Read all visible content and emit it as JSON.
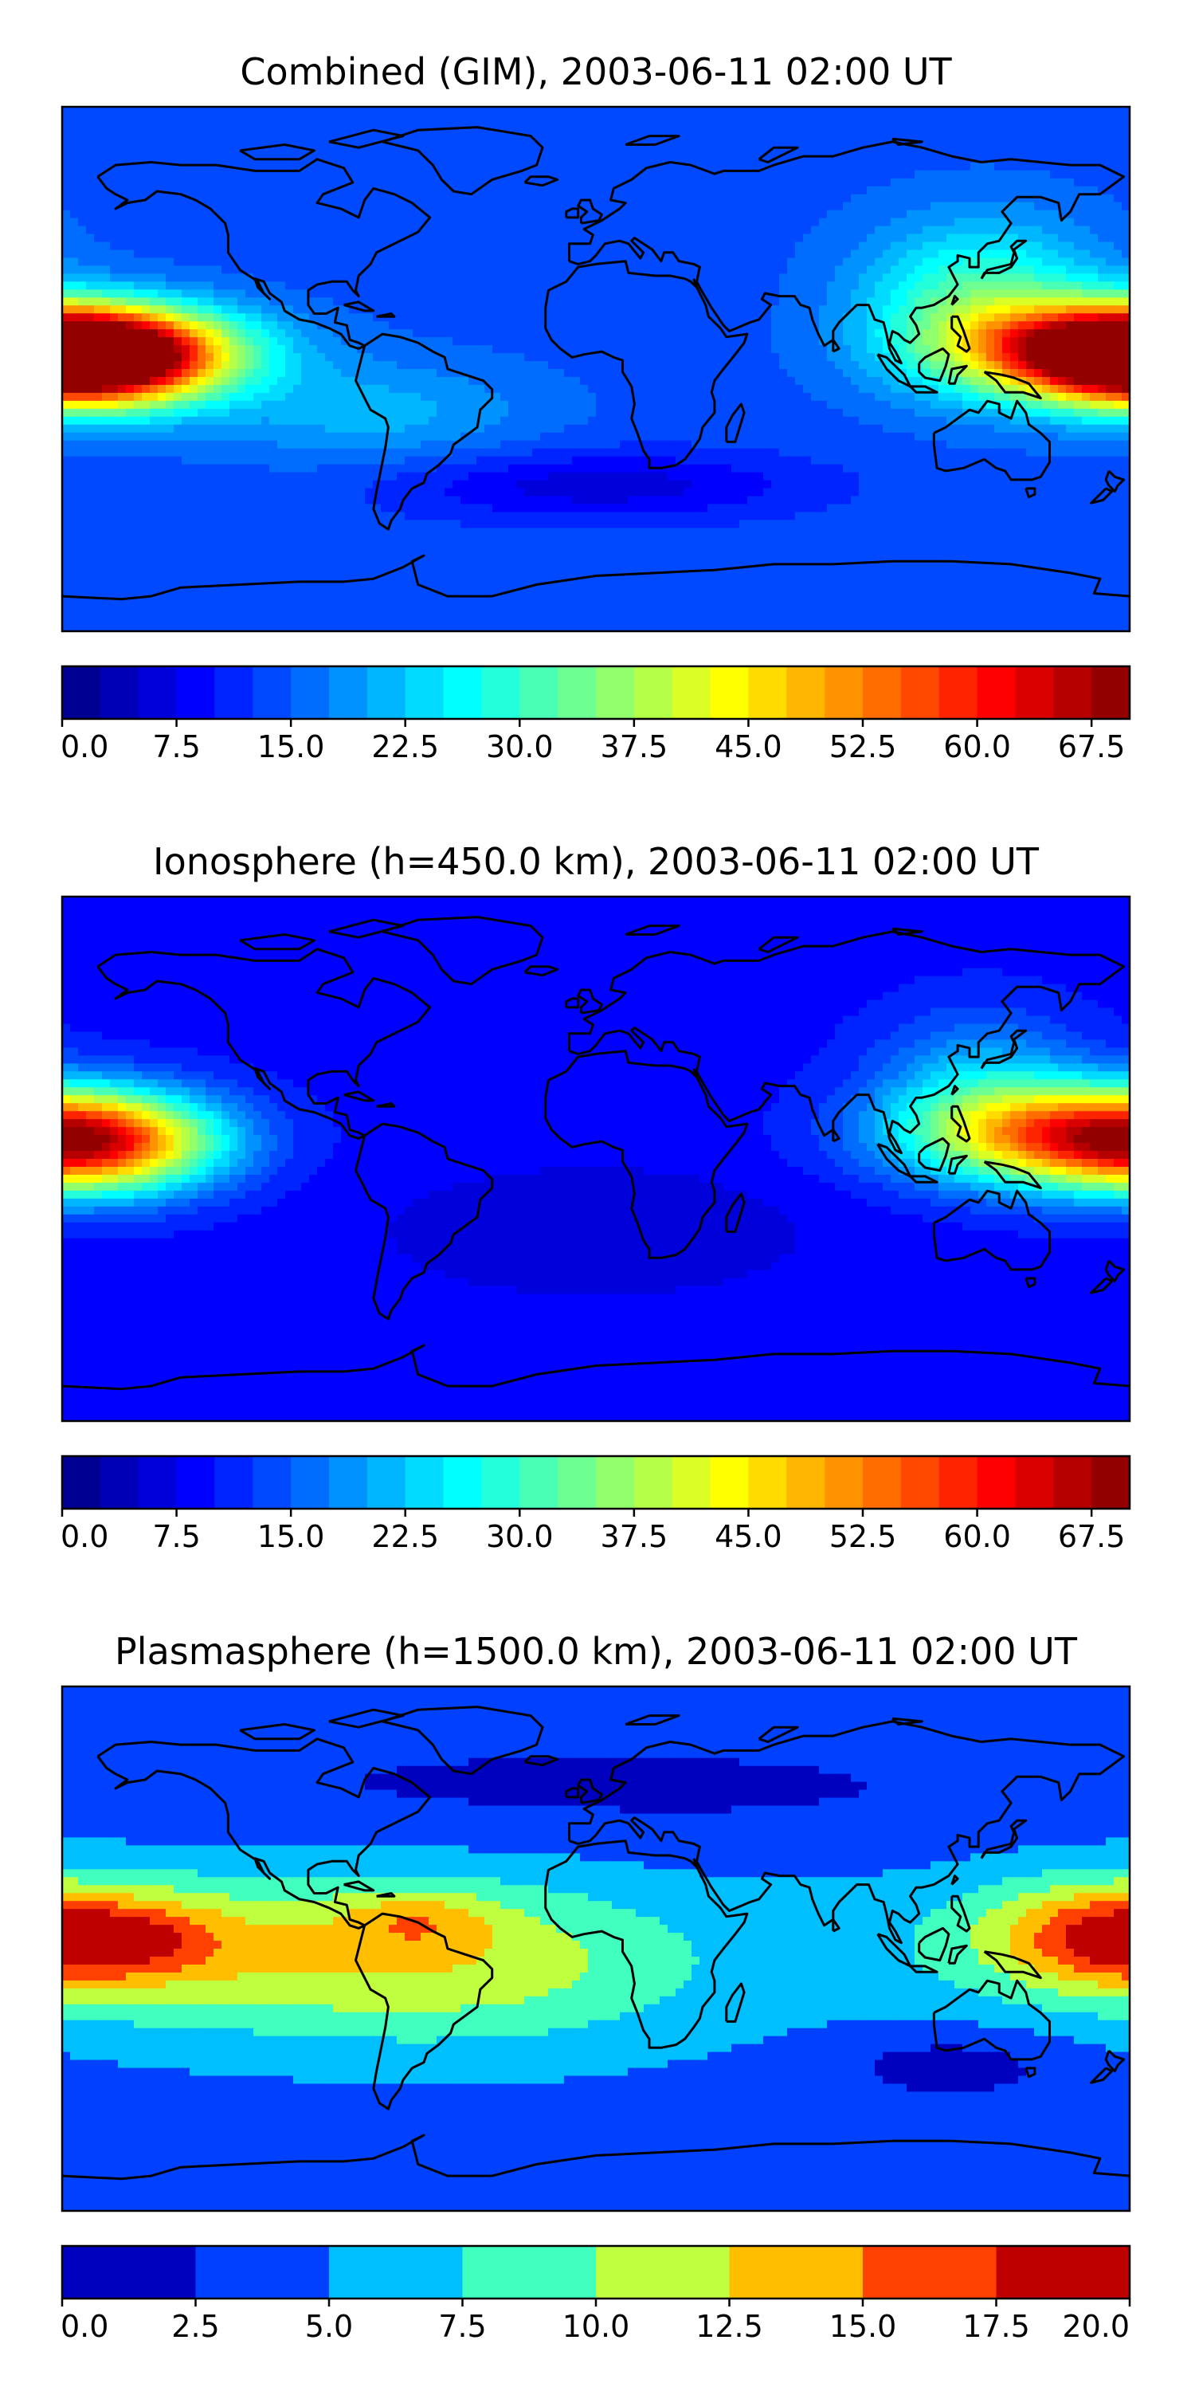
{
  "panels": [
    {
      "title": "Combined (GIM), 2003-06-11 02:00 UT",
      "colorbar": {
        "min": 0,
        "max": 70,
        "levels": 28,
        "ticks": [
          "0.0",
          "7.5",
          "15.0",
          "22.5",
          "30.0",
          "37.5",
          "45.0",
          "52.5",
          "60.0",
          "67.5"
        ],
        "tick_values": [
          0,
          7.5,
          15,
          22.5,
          30,
          37.5,
          45,
          52.5,
          60,
          67.5
        ]
      },
      "field": {
        "background": 14,
        "features": [
          {
            "lon": -172,
            "lat": 3,
            "rlon": 40,
            "rlat": 16,
            "amp": 55
          },
          {
            "lon": 180,
            "lat": 7,
            "rlon": 55,
            "rlat": 15,
            "amp": 40
          },
          {
            "lon": 130,
            "lat": 22,
            "rlon": 40,
            "rlat": 28,
            "amp": 18
          },
          {
            "lon": -75,
            "lat": -15,
            "rlon": 55,
            "rlat": 18,
            "amp": 7
          },
          {
            "lon": 0,
            "lat": -40,
            "rlon": 70,
            "rlat": 12,
            "amp": -8
          }
        ]
      }
    },
    {
      "title": "Ionosphere  (h=450.0 km), 2003-06-11 02:00 UT",
      "colorbar": {
        "min": 0,
        "max": 70,
        "levels": 28,
        "ticks": [
          "0.0",
          "7.5",
          "15.0",
          "22.5",
          "30.0",
          "37.5",
          "45.0",
          "52.5",
          "60.0",
          "67.5"
        ],
        "tick_values": [
          0,
          7.5,
          15,
          22.5,
          30,
          37.5,
          45,
          52.5,
          60,
          67.5
        ]
      },
      "field": {
        "background": 9,
        "features": [
          {
            "lon": -168,
            "lat": 5,
            "rlon": 40,
            "rlat": 17,
            "amp": 35
          },
          {
            "lon": 160,
            "lat": 8,
            "rlon": 55,
            "rlat": 17,
            "amp": 36
          },
          {
            "lon": 130,
            "lat": 25,
            "rlon": 35,
            "rlat": 25,
            "amp": 12
          },
          {
            "lon": 0,
            "lat": -25,
            "rlon": 70,
            "rlat": 22,
            "amp": -4
          }
        ]
      }
    },
    {
      "title": "Plasmasphere (h=1500.0 km), 2003-06-11 02:00 UT",
      "colorbar": {
        "min": 0,
        "max": 20,
        "levels": 8,
        "ticks": [
          "0.0",
          "2.5",
          "5.0",
          "7.5",
          "10.0",
          "12.5",
          "15.0",
          "17.5",
          "20.0"
        ],
        "tick_values": [
          0,
          2.5,
          5,
          7.5,
          10,
          12.5,
          15,
          17.5,
          20
        ]
      },
      "field": {
        "background": 4,
        "features": [
          {
            "lon": -150,
            "lat": 0,
            "rlon": 110,
            "rlat": 28,
            "amp": 6
          },
          {
            "lon": -160,
            "lat": 3,
            "rlon": 35,
            "rlat": 13,
            "amp": 6
          },
          {
            "lon": -40,
            "lat": -5,
            "rlon": 90,
            "rlat": 30,
            "amp": 6
          },
          {
            "lon": -60,
            "lat": 10,
            "rlon": 25,
            "rlat": 10,
            "amp": 4
          },
          {
            "lon": 170,
            "lat": 5,
            "rlon": 40,
            "rlat": 18,
            "amp": 8
          },
          {
            "lon": 120,
            "lat": -40,
            "rlon": 40,
            "rlat": 12,
            "amp": -3
          },
          {
            "lon": 0,
            "lat": 55,
            "rlon": 180,
            "rlat": 20,
            "amp": -2
          }
        ]
      }
    }
  ]
}
